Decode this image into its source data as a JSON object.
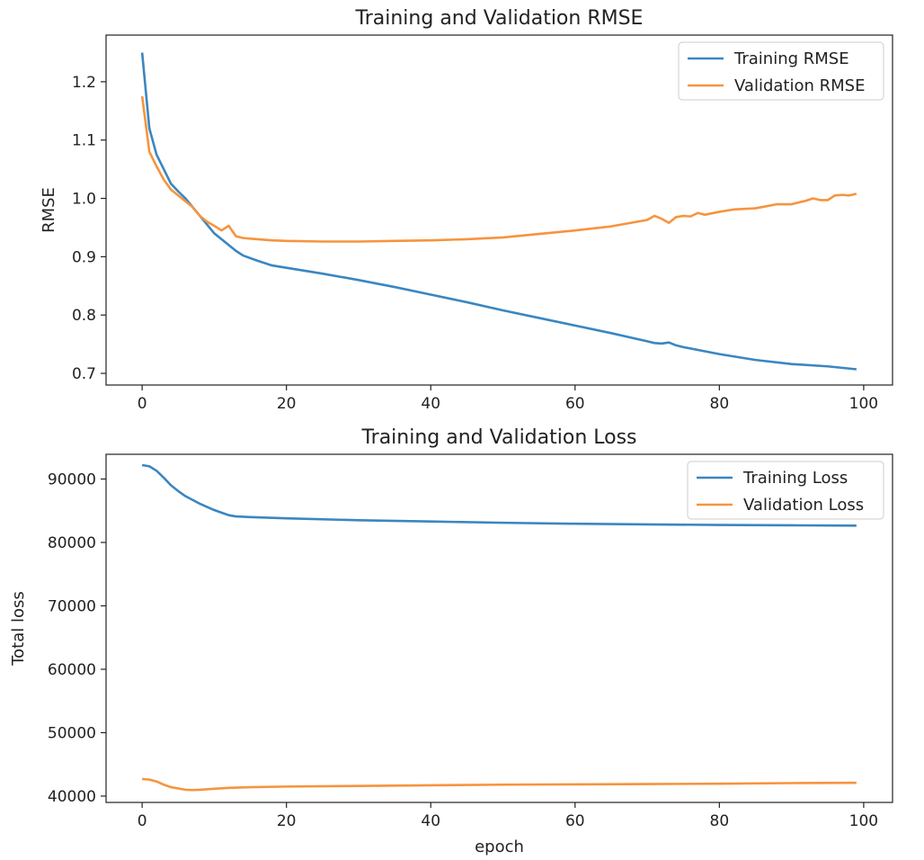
{
  "colors": {
    "training": "#3b86c0",
    "validation": "#f6943e"
  },
  "chart_data": [
    {
      "type": "line",
      "title": "Training and Validation RMSE",
      "xlabel": "",
      "ylabel": "RMSE",
      "xlim": [
        -5,
        104
      ],
      "ylim": [
        0.68,
        1.28
      ],
      "xticks": [
        0,
        20,
        40,
        60,
        80,
        100
      ],
      "xtick_labels": [
        "0",
        "20",
        "40",
        "60",
        "80",
        "100"
      ],
      "yticks": [
        0.7,
        0.8,
        0.9,
        1.0,
        1.1,
        1.2
      ],
      "ytick_labels": [
        "0.7",
        "0.8",
        "0.9",
        "1.0",
        "1.1",
        "1.2"
      ],
      "grid": false,
      "legend_position": "top-right",
      "series": [
        {
          "name": "Training RMSE",
          "color_key": "training",
          "points": [
            [
              0,
              1.25
            ],
            [
              1,
              1.12
            ],
            [
              2,
              1.075
            ],
            [
              3,
              1.05
            ],
            [
              4,
              1.025
            ],
            [
              5,
              1.012
            ],
            [
              6,
              1.0
            ],
            [
              7,
              0.985
            ],
            [
              8,
              0.97
            ],
            [
              9,
              0.955
            ],
            [
              10,
              0.94
            ],
            [
              11,
              0.93
            ],
            [
              12,
              0.92
            ],
            [
              13,
              0.91
            ],
            [
              14,
              0.902
            ],
            [
              16,
              0.893
            ],
            [
              18,
              0.885
            ],
            [
              20,
              0.881
            ],
            [
              25,
              0.871
            ],
            [
              30,
              0.86
            ],
            [
              35,
              0.848
            ],
            [
              40,
              0.835
            ],
            [
              45,
              0.822
            ],
            [
              50,
              0.808
            ],
            [
              55,
              0.795
            ],
            [
              60,
              0.782
            ],
            [
              65,
              0.769
            ],
            [
              70,
              0.755
            ],
            [
              71,
              0.752
            ],
            [
              72,
              0.751
            ],
            [
              73,
              0.753
            ],
            [
              74,
              0.748
            ],
            [
              75,
              0.745
            ],
            [
              80,
              0.733
            ],
            [
              85,
              0.723
            ],
            [
              90,
              0.716
            ],
            [
              95,
              0.712
            ],
            [
              99,
              0.707
            ]
          ]
        },
        {
          "name": "Validation RMSE",
          "color_key": "validation",
          "points": [
            [
              0,
              1.175
            ],
            [
              1,
              1.08
            ],
            [
              2,
              1.055
            ],
            [
              3,
              1.032
            ],
            [
              4,
              1.015
            ],
            [
              5,
              1.005
            ],
            [
              6,
              0.995
            ],
            [
              7,
              0.985
            ],
            [
              8,
              0.97
            ],
            [
              9,
              0.96
            ],
            [
              10,
              0.953
            ],
            [
              11,
              0.945
            ],
            [
              12,
              0.953
            ],
            [
              13,
              0.935
            ],
            [
              14,
              0.932
            ],
            [
              16,
              0.93
            ],
            [
              18,
              0.928
            ],
            [
              20,
              0.927
            ],
            [
              25,
              0.926
            ],
            [
              30,
              0.926
            ],
            [
              35,
              0.927
            ],
            [
              40,
              0.928
            ],
            [
              45,
              0.93
            ],
            [
              50,
              0.933
            ],
            [
              55,
              0.939
            ],
            [
              60,
              0.945
            ],
            [
              65,
              0.952
            ],
            [
              70,
              0.963
            ],
            [
              71,
              0.97
            ],
            [
              72,
              0.965
            ],
            [
              73,
              0.958
            ],
            [
              74,
              0.968
            ],
            [
              75,
              0.97
            ],
            [
              76,
              0.969
            ],
            [
              77,
              0.975
            ],
            [
              78,
              0.972
            ],
            [
              80,
              0.977
            ],
            [
              82,
              0.981
            ],
            [
              85,
              0.983
            ],
            [
              88,
              0.99
            ],
            [
              90,
              0.99
            ],
            [
              92,
              0.996
            ],
            [
              93,
              1.0
            ],
            [
              94,
              0.997
            ],
            [
              95,
              0.997
            ],
            [
              96,
              1.005
            ],
            [
              97,
              1.006
            ],
            [
              98,
              1.005
            ],
            [
              99,
              1.008
            ]
          ]
        }
      ]
    },
    {
      "type": "line",
      "title": "Training and Validation Loss",
      "xlabel": "epoch",
      "ylabel": "Total loss",
      "xlim": [
        -5,
        104
      ],
      "ylim": [
        39000,
        93900
      ],
      "xticks": [
        0,
        20,
        40,
        60,
        80,
        100
      ],
      "xtick_labels": [
        "0",
        "20",
        "40",
        "60",
        "80",
        "100"
      ],
      "yticks": [
        40000,
        50000,
        60000,
        70000,
        80000,
        90000
      ],
      "ytick_labels": [
        "40000",
        "50000",
        "60000",
        "70000",
        "80000",
        "90000"
      ],
      "grid": false,
      "legend_position": "top-right",
      "series": [
        {
          "name": "Training Loss",
          "color_key": "training",
          "points": [
            [
              0,
              92200
            ],
            [
              1,
              92000
            ],
            [
              2,
              91300
            ],
            [
              3,
              90200
            ],
            [
              4,
              89000
            ],
            [
              5,
              88100
            ],
            [
              6,
              87300
            ],
            [
              7,
              86700
            ],
            [
              8,
              86100
            ],
            [
              9,
              85600
            ],
            [
              10,
              85100
            ],
            [
              11,
              84700
            ],
            [
              12,
              84300
            ],
            [
              13,
              84100
            ],
            [
              15,
              84000
            ],
            [
              20,
              83800
            ],
            [
              30,
              83500
            ],
            [
              40,
              83300
            ],
            [
              50,
              83100
            ],
            [
              60,
              82950
            ],
            [
              70,
              82850
            ],
            [
              80,
              82750
            ],
            [
              90,
              82700
            ],
            [
              99,
              82650
            ]
          ]
        },
        {
          "name": "Validation Loss",
          "color_key": "validation",
          "points": [
            [
              0,
              42700
            ],
            [
              1,
              42600
            ],
            [
              2,
              42300
            ],
            [
              3,
              41800
            ],
            [
              4,
              41400
            ],
            [
              5,
              41200
            ],
            [
              6,
              41000
            ],
            [
              7,
              40950
            ],
            [
              8,
              41000
            ],
            [
              10,
              41150
            ],
            [
              12,
              41300
            ],
            [
              15,
              41400
            ],
            [
              20,
              41500
            ],
            [
              30,
              41600
            ],
            [
              40,
              41700
            ],
            [
              50,
              41800
            ],
            [
              60,
              41850
            ],
            [
              70,
              41900
            ],
            [
              80,
              41950
            ],
            [
              90,
              42050
            ],
            [
              99,
              42100
            ]
          ]
        }
      ]
    }
  ]
}
